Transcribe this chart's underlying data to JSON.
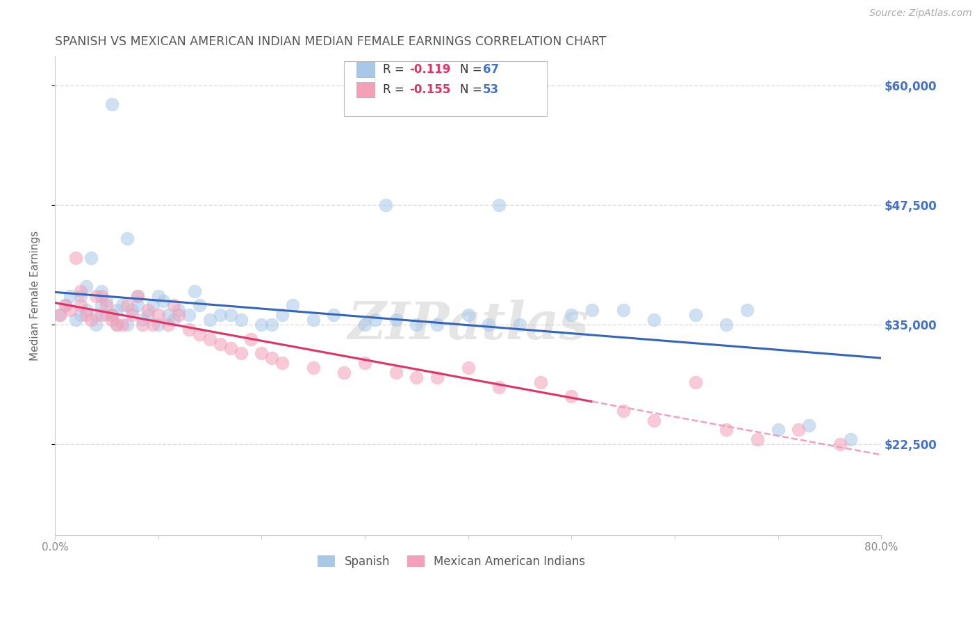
{
  "title": "SPANISH VS MEXICAN AMERICAN INDIAN MEDIAN FEMALE EARNINGS CORRELATION CHART",
  "source": "Source: ZipAtlas.com",
  "ylabel": "Median Female Earnings",
  "xlim": [
    0.0,
    0.8
  ],
  "ylim": [
    13000,
    63000
  ],
  "yticks": [
    22500,
    35000,
    47500,
    60000
  ],
  "ytick_labels": [
    "$22,500",
    "$35,000",
    "$47,500",
    "$60,000"
  ],
  "xticks": [
    0.0,
    0.1,
    0.2,
    0.3,
    0.4,
    0.5,
    0.6,
    0.7,
    0.8
  ],
  "xtick_labels": [
    "0.0%",
    "",
    "",
    "",
    "",
    "",
    "",
    "",
    "80.0%"
  ],
  "background_color": "#ffffff",
  "grid_color": "#dddddd",
  "watermark": "ZIPatlas",
  "blue_color": "#a8c8e8",
  "pink_color": "#f4a0b8",
  "blue_line_color": "#3366bb",
  "pink_line_color": "#dd3366",
  "pink_line_dashed_color": "#f0a0c0",
  "title_color": "#555555",
  "axis_label_color": "#666666",
  "ytick_color": "#4472c4",
  "legend_R_color": "#dd3366",
  "legend_N_color": "#4472c4",
  "spanish_x": [
    0.005,
    0.01,
    0.015,
    0.02,
    0.025,
    0.025,
    0.03,
    0.03,
    0.035,
    0.04,
    0.04,
    0.045,
    0.045,
    0.05,
    0.05,
    0.055,
    0.055,
    0.06,
    0.06,
    0.065,
    0.07,
    0.07,
    0.075,
    0.08,
    0.08,
    0.085,
    0.09,
    0.095,
    0.1,
    0.1,
    0.105,
    0.11,
    0.115,
    0.12,
    0.13,
    0.135,
    0.14,
    0.15,
    0.16,
    0.17,
    0.18,
    0.2,
    0.21,
    0.22,
    0.23,
    0.25,
    0.27,
    0.3,
    0.31,
    0.32,
    0.33,
    0.35,
    0.37,
    0.4,
    0.42,
    0.43,
    0.45,
    0.5,
    0.52,
    0.55,
    0.58,
    0.62,
    0.65,
    0.67,
    0.7,
    0.73,
    0.77
  ],
  "spanish_y": [
    36000,
    37000,
    38000,
    35500,
    36000,
    38000,
    36500,
    39000,
    42000,
    35000,
    36000,
    37000,
    38500,
    36000,
    37500,
    36000,
    58000,
    35000,
    36500,
    37000,
    35000,
    44000,
    36500,
    37000,
    38000,
    35500,
    36000,
    37000,
    38000,
    35000,
    37500,
    36000,
    35500,
    36500,
    36000,
    38500,
    37000,
    35500,
    36000,
    36000,
    35500,
    35000,
    35000,
    36000,
    37000,
    35500,
    36000,
    35000,
    35500,
    47500,
    35500,
    35000,
    35000,
    36000,
    35000,
    47500,
    35000,
    36000,
    36500,
    36500,
    35500,
    36000,
    35000,
    36500,
    24000,
    24500,
    23000
  ],
  "mexican_x": [
    0.005,
    0.01,
    0.015,
    0.02,
    0.025,
    0.025,
    0.03,
    0.035,
    0.04,
    0.045,
    0.045,
    0.05,
    0.055,
    0.055,
    0.06,
    0.065,
    0.07,
    0.075,
    0.08,
    0.085,
    0.09,
    0.095,
    0.1,
    0.11,
    0.115,
    0.12,
    0.13,
    0.14,
    0.15,
    0.16,
    0.17,
    0.18,
    0.19,
    0.2,
    0.21,
    0.22,
    0.25,
    0.28,
    0.3,
    0.33,
    0.35,
    0.37,
    0.4,
    0.43,
    0.47,
    0.5,
    0.55,
    0.58,
    0.62,
    0.65,
    0.68,
    0.72,
    0.76
  ],
  "mexican_y": [
    36000,
    37000,
    36500,
    42000,
    38500,
    37000,
    36000,
    35500,
    38000,
    36000,
    38000,
    37000,
    35500,
    36000,
    35000,
    35000,
    37000,
    36000,
    38000,
    35000,
    36500,
    35000,
    36000,
    35000,
    37000,
    36000,
    34500,
    34000,
    33500,
    33000,
    32500,
    32000,
    33500,
    32000,
    31500,
    31000,
    30500,
    30000,
    31000,
    30000,
    29500,
    29500,
    30500,
    28500,
    29000,
    27500,
    26000,
    25000,
    29000,
    24000,
    23000,
    24000,
    22500
  ]
}
